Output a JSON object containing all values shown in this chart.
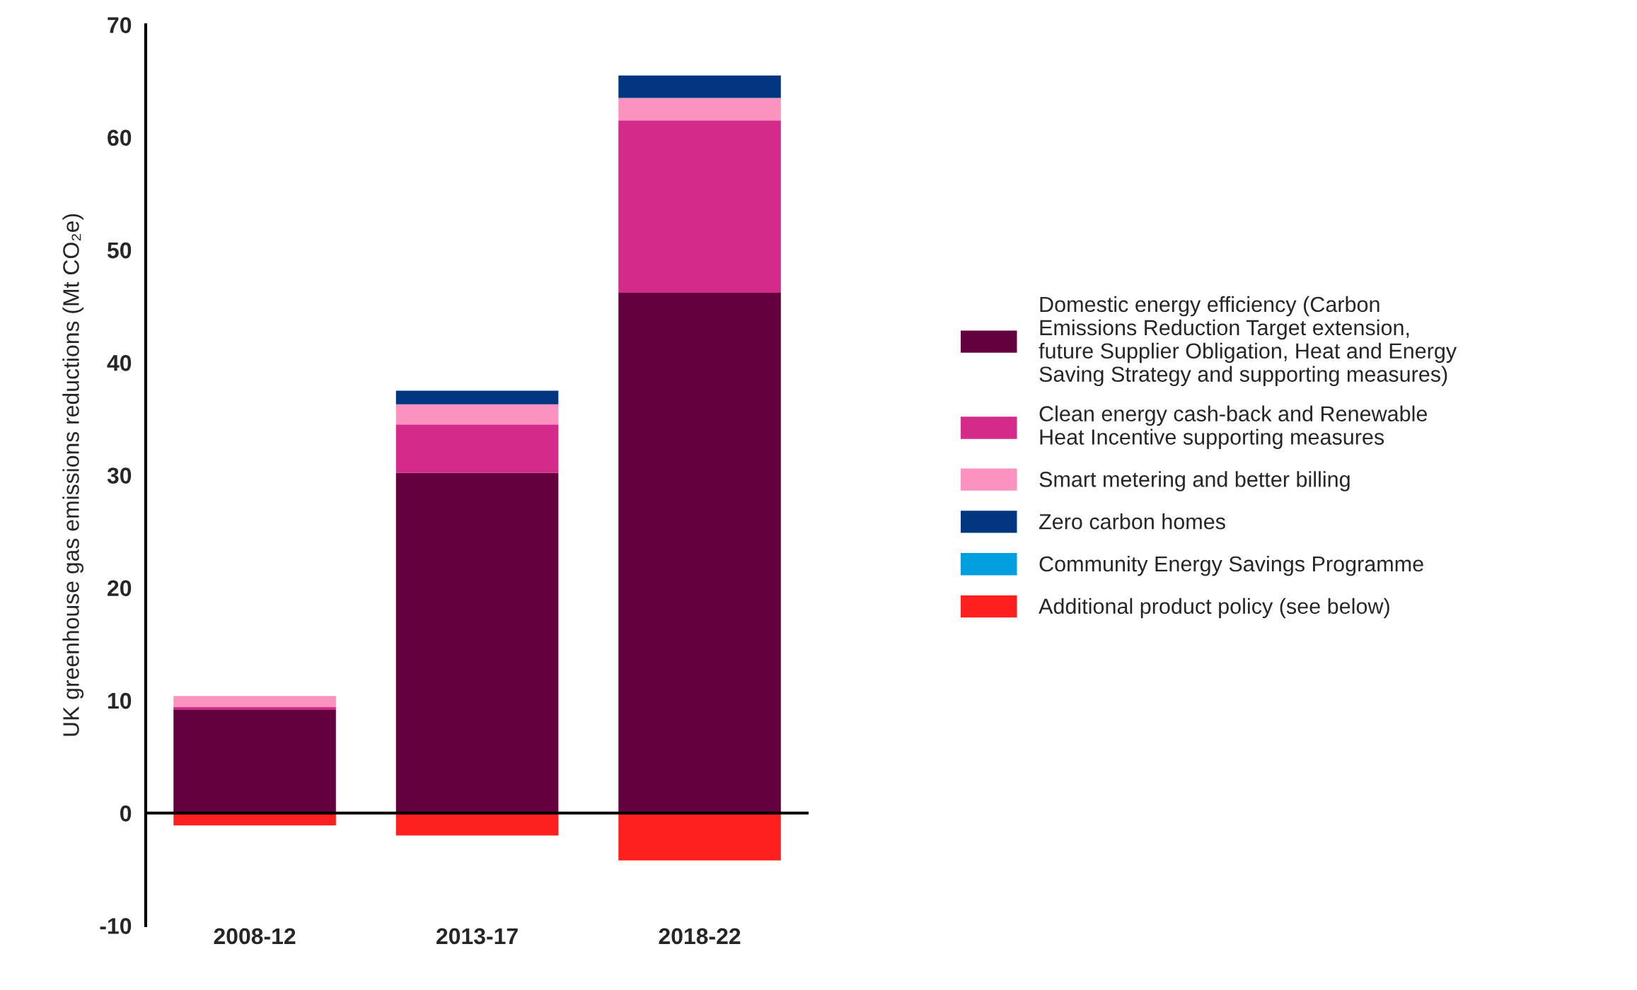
{
  "chart_data": {
    "type": "bar",
    "stacked": true,
    "ylabel": "UK greenhouse gas emissions reductions (Mt CO₂e)",
    "categories": [
      "2008-12",
      "2013-17",
      "2018-22"
    ],
    "series": [
      {
        "name": "Domestic energy efficiency (Carbon\nEmissions Reduction Target extension,\nfuture Supplier Obligation, Heat and Energy\nSaving Strategy and supporting measures)",
        "color": "#65003f",
        "values": [
          9.2,
          30.2,
          46.2
        ]
      },
      {
        "name": "Clean energy cash-back and Renewable\nHeat Incentive supporting measures",
        "color": "#d42a8a",
        "values": [
          0.2,
          4.3,
          15.3
        ]
      },
      {
        "name": "Smart metering and better billing",
        "color": "#fb92c0",
        "values": [
          1.0,
          1.8,
          2.0
        ]
      },
      {
        "name": "Zero carbon homes",
        "color": "#033680",
        "values": [
          0,
          1.2,
          2.0
        ]
      },
      {
        "name": "Community Energy Savings Programme",
        "color": "#019ee0",
        "values": [
          0,
          0,
          0
        ]
      },
      {
        "name": "Additional product policy (see below)",
        "color": "#fe1f1f",
        "values": [
          -1.1,
          -2.0,
          -4.2
        ]
      }
    ],
    "ylim": [
      -10,
      70
    ],
    "yticks": [
      -10,
      0,
      10,
      20,
      30,
      40,
      50,
      60,
      70
    ],
    "ref_lines": [
      {
        "axis": "y",
        "value": 0,
        "color": "#000000"
      }
    ],
    "legend": "right"
  }
}
